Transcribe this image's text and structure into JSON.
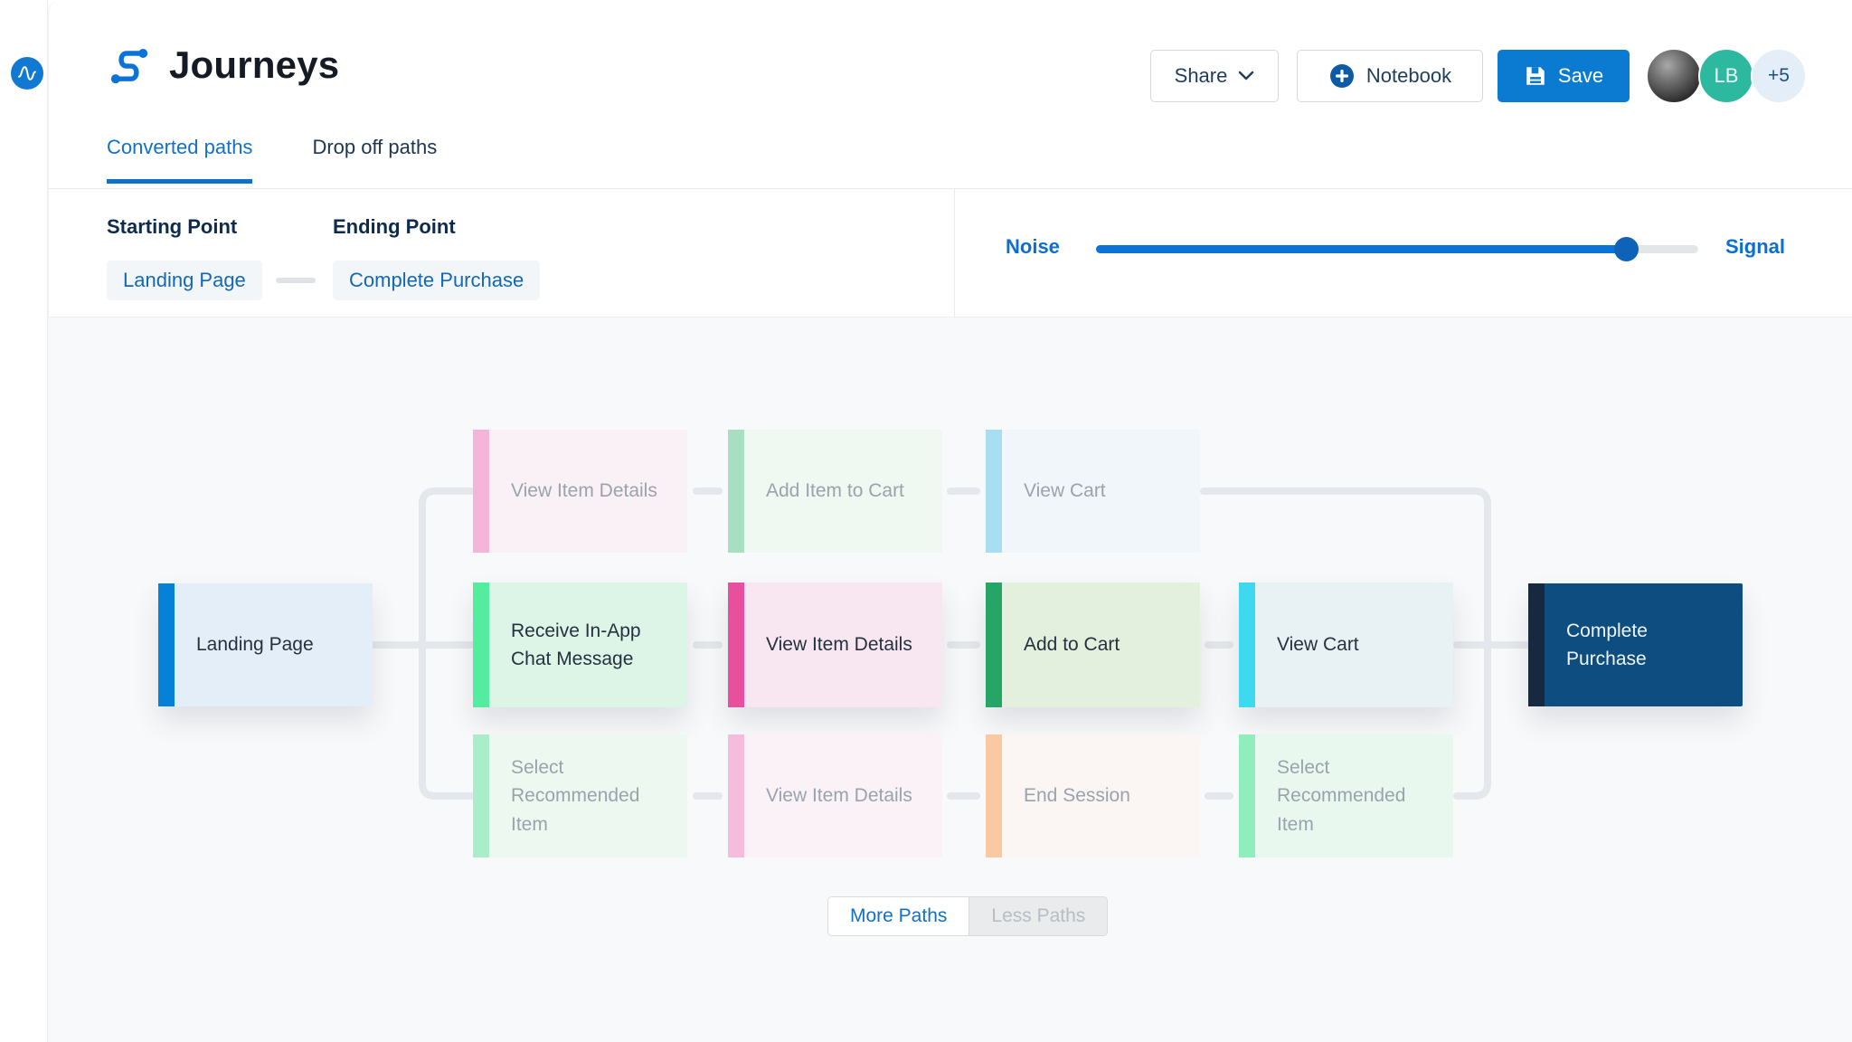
{
  "header": {
    "title": "Journeys",
    "share_label": "Share",
    "notebook_label": "Notebook",
    "save_label": "Save",
    "avatar_initials": "LB",
    "avatar_overflow": "+5",
    "accent_color": "#0b7ad1"
  },
  "tabs": [
    {
      "label": "Converted paths",
      "active": true
    },
    {
      "label": "Drop off paths",
      "active": false
    }
  ],
  "filters": {
    "starting_point_label": "Starting Point",
    "starting_point_value": "Landing Page",
    "ending_point_label": "Ending Point",
    "ending_point_value": "Complete Purchase"
  },
  "slider": {
    "left_label": "Noise",
    "right_label": "Signal",
    "value_percent": 88,
    "fill_color": "#0b72d7",
    "thumb_color": "#0e63b8"
  },
  "diagram": {
    "nodes": [
      {
        "id": "landing-page",
        "label": "Landing Page",
        "col": 0,
        "row": "start",
        "bar": "#0681d8",
        "body": "#e3eef8",
        "faded": false,
        "elevated": true
      },
      {
        "id": "view-item-details-top",
        "label": "View Item Details",
        "col": 1,
        "row": "top",
        "bar": "#f5b5d8",
        "body": "#faf1f6",
        "faded": true,
        "elevated": false
      },
      {
        "id": "add-item-to-cart-top",
        "label": "Add Item to Cart",
        "col": 2,
        "row": "top",
        "bar": "#a8dfc0",
        "body": "#eff8f1",
        "faded": true,
        "elevated": false
      },
      {
        "id": "view-cart-top",
        "label": "View Cart",
        "col": 3,
        "row": "top",
        "bar": "#a9def2",
        "body": "#f0f6f9",
        "faded": true,
        "elevated": false
      },
      {
        "id": "receive-in-app-chat",
        "label": "Receive In-App Chat Message",
        "col": 1,
        "row": "mid",
        "bar": "#54eda0",
        "body": "#ddf5e7",
        "faded": false,
        "elevated": true
      },
      {
        "id": "view-item-details-mid",
        "label": "View Item Details",
        "col": 2,
        "row": "mid",
        "bar": "#e8509f",
        "body": "#f8e7f0",
        "faded": false,
        "elevated": true
      },
      {
        "id": "add-to-cart-mid",
        "label": "Add to Cart",
        "col": 3,
        "row": "mid",
        "bar": "#27a567",
        "body": "#e3f0dd",
        "faded": false,
        "elevated": true
      },
      {
        "id": "view-cart-mid",
        "label": "View Cart",
        "col": 4,
        "row": "mid",
        "bar": "#3fd9ef",
        "body": "#e8f2f5",
        "faded": false,
        "elevated": true
      },
      {
        "id": "select-recommended-1",
        "label": "Select Recommended Item",
        "col": 1,
        "row": "bottom",
        "bar": "#a9eec8",
        "body": "#edf8f0",
        "faded": true,
        "elevated": false
      },
      {
        "id": "view-item-details-bot",
        "label": "View Item Details",
        "col": 2,
        "row": "bottom",
        "bar": "#f5bcdb",
        "body": "#faf2f6",
        "faded": true,
        "elevated": false
      },
      {
        "id": "end-session",
        "label": "End Session",
        "col": 3,
        "row": "bottom",
        "bar": "#f9caa1",
        "body": "#fbf5f3",
        "faded": true,
        "elevated": false
      },
      {
        "id": "select-recommended-2",
        "label": "Select Recommended Item",
        "col": 4,
        "row": "bottom",
        "bar": "#90eebc",
        "body": "#e9f8ef",
        "faded": true,
        "elevated": false
      },
      {
        "id": "complete-purchase",
        "label": "Complete Purchase",
        "col": 5,
        "row": "end",
        "bar": "#16293e",
        "body": "#0d4d80",
        "faded": false,
        "elevated": true
      }
    ],
    "connector_color": "#e4e7eb"
  },
  "paths_toggle": {
    "more_label": "More Paths",
    "less_label": "Less Paths",
    "active": "more"
  }
}
